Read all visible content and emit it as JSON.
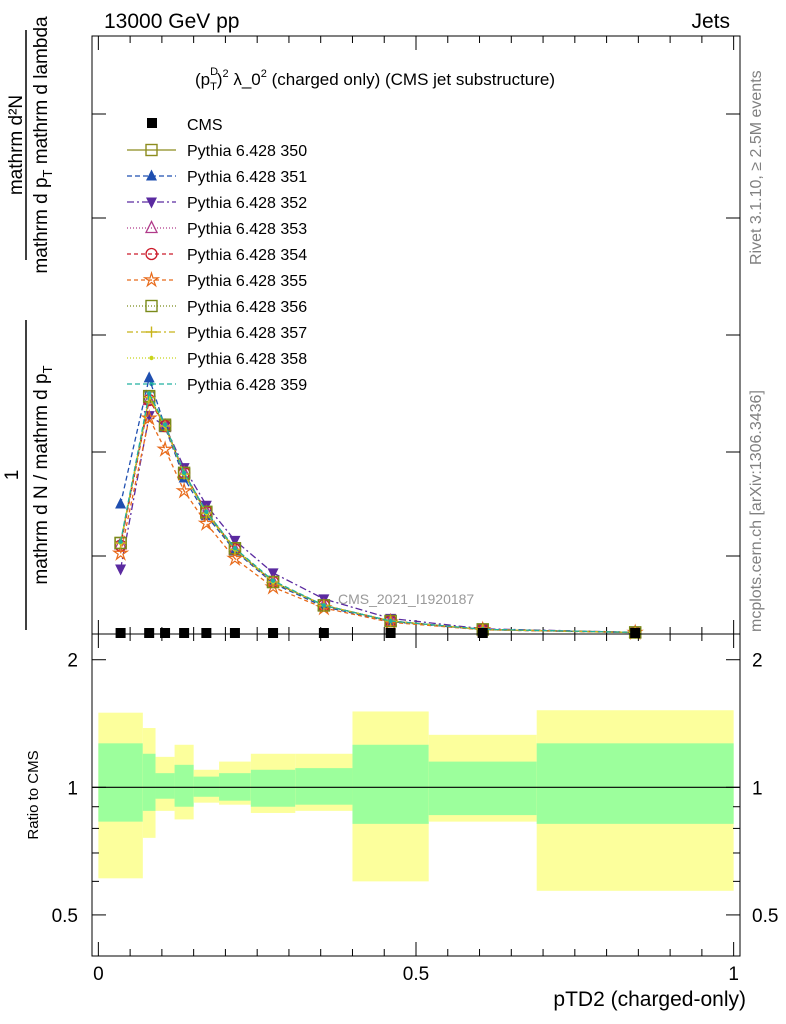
{
  "header": {
    "left": "13000 GeV pp",
    "right": "Jets"
  },
  "side_text": {
    "rivet": "Rivet 3.1.10, ≥ 2.5M events",
    "mcplots": "mcplots.cern.ch [arXiv:1306.3436]"
  },
  "chart_data": [
    {
      "type": "line",
      "title_parts": {
        "p": "(p",
        "sup_d": "D",
        "sub_t": "T",
        "close": ")",
        "sup_2a": "2",
        "lambda": " λ_0",
        "sup_2b": "2",
        "rest": " (charged only) (CMS jet substructure)"
      },
      "ylabel": {
        "numerator": "mathrm d²N",
        "denominator_a": "mathrm d p",
        "denominator_sub": "T",
        "denominator_b": " mathrm d lambda",
        "lhs_numerator": "1",
        "lhs_denominator": "mathrm d N / mathrm d p",
        "lhs_denominator_sub": "T"
      },
      "watermark": "CMS_2021_I1920187",
      "x_range": [
        -0.01,
        1.01
      ],
      "y_range": [
        0,
        4.6
      ],
      "x": [
        0.035,
        0.08,
        0.105,
        0.135,
        0.17,
        0.215,
        0.275,
        0.355,
        0.46,
        0.605,
        0.845
      ],
      "cms": [
        0.0,
        0.0,
        0.0,
        0.0,
        0.0,
        0.0,
        0.0,
        0.0,
        0.0,
        0.0,
        0.0
      ],
      "series": [
        {
          "name": "Pythia 6.428 350",
          "color": "#8c8c1e",
          "dash": "",
          "marker": "square-open",
          "values": [
            0.7,
            1.82,
            1.6,
            1.23,
            0.93,
            0.65,
            0.4,
            0.22,
            0.1,
            0.035,
            0.012
          ]
        },
        {
          "name": "Pythia 6.428 351",
          "color": "#1f4fb0",
          "dash": "5,3",
          "marker": "triangle-up",
          "values": [
            1.0,
            1.97,
            1.59,
            1.2,
            0.91,
            0.64,
            0.39,
            0.21,
            0.095,
            0.033,
            0.011
          ]
        },
        {
          "name": "Pythia 6.428 352",
          "color": "#5a2aa0",
          "dash": "7,3,2,3",
          "marker": "triangle-down",
          "values": [
            0.5,
            1.68,
            1.6,
            1.28,
            0.99,
            0.72,
            0.47,
            0.27,
            0.12,
            0.04,
            0.013
          ]
        },
        {
          "name": "Pythia 6.428 353",
          "color": "#b03a8a",
          "dash": "1,2",
          "marker": "triangle-open",
          "values": [
            0.69,
            1.8,
            1.6,
            1.24,
            0.94,
            0.65,
            0.4,
            0.22,
            0.1,
            0.035,
            0.012
          ]
        },
        {
          "name": "Pythia 6.428 354",
          "color": "#cc1a2a",
          "dash": "4,3",
          "marker": "circle-open",
          "values": [
            0.68,
            1.8,
            1.6,
            1.24,
            0.94,
            0.65,
            0.4,
            0.22,
            0.1,
            0.035,
            0.012
          ]
        },
        {
          "name": "Pythia 6.428 355",
          "color": "#e86a1a",
          "dash": "4,3",
          "marker": "star",
          "values": [
            0.62,
            1.66,
            1.42,
            1.1,
            0.85,
            0.58,
            0.36,
            0.2,
            0.09,
            0.032,
            0.011
          ]
        },
        {
          "name": "Pythia 6.428 356",
          "color": "#7a8a1a",
          "dash": "1,2",
          "marker": "square-open",
          "values": [
            0.7,
            1.83,
            1.61,
            1.24,
            0.94,
            0.66,
            0.4,
            0.22,
            0.1,
            0.035,
            0.012
          ]
        },
        {
          "name": "Pythia 6.428 357",
          "color": "#c8b41a",
          "dash": "6,3,2,3",
          "marker": "plus",
          "values": [
            0.7,
            1.82,
            1.6,
            1.23,
            0.93,
            0.65,
            0.4,
            0.22,
            0.1,
            0.035,
            0.012
          ]
        },
        {
          "name": "Pythia 6.428 358",
          "color": "#c8d41a",
          "dash": "1,2",
          "marker": "dot",
          "values": [
            0.7,
            1.82,
            1.6,
            1.23,
            0.93,
            0.65,
            0.4,
            0.22,
            0.1,
            0.035,
            0.012
          ]
        },
        {
          "name": "Pythia 6.428 359",
          "color": "#20b0a0",
          "dash": "5,3",
          "marker": "dot",
          "values": [
            0.71,
            1.85,
            1.61,
            1.24,
            0.94,
            0.66,
            0.41,
            0.22,
            0.1,
            0.036,
            0.012
          ]
        }
      ]
    },
    {
      "type": "area",
      "ylabel": "Ratio to CMS",
      "xlabel": "pTD2 (charged-only)",
      "x_range": [
        -0.01,
        1.01
      ],
      "y_range": [
        0.4,
        2.3
      ],
      "x_ticks": [
        "0",
        "0.5",
        "1"
      ],
      "y_ticks": [
        "0.5",
        "1",
        "2"
      ],
      "reference": 1.0,
      "bins": [
        {
          "lo": 0.0,
          "hi": 0.07,
          "inner": [
            0.83,
            1.27
          ],
          "outer": [
            0.61,
            1.5
          ]
        },
        {
          "lo": 0.07,
          "hi": 0.09,
          "inner": [
            0.88,
            1.2
          ],
          "outer": [
            0.76,
            1.38
          ]
        },
        {
          "lo": 0.09,
          "hi": 0.12,
          "inner": [
            0.94,
            1.08
          ],
          "outer": [
            0.88,
            1.18
          ]
        },
        {
          "lo": 0.12,
          "hi": 0.15,
          "inner": [
            0.9,
            1.13
          ],
          "outer": [
            0.84,
            1.26
          ]
        },
        {
          "lo": 0.15,
          "hi": 0.19,
          "inner": [
            0.95,
            1.06
          ],
          "outer": [
            0.92,
            1.1
          ]
        },
        {
          "lo": 0.19,
          "hi": 0.24,
          "inner": [
            0.93,
            1.08
          ],
          "outer": [
            0.91,
            1.15
          ]
        },
        {
          "lo": 0.24,
          "hi": 0.31,
          "inner": [
            0.9,
            1.1
          ],
          "outer": [
            0.87,
            1.2
          ]
        },
        {
          "lo": 0.31,
          "hi": 0.4,
          "inner": [
            0.91,
            1.11
          ],
          "outer": [
            0.88,
            1.2
          ]
        },
        {
          "lo": 0.4,
          "hi": 0.52,
          "inner": [
            0.82,
            1.26
          ],
          "outer": [
            0.6,
            1.51
          ]
        },
        {
          "lo": 0.52,
          "hi": 0.69,
          "inner": [
            0.86,
            1.15
          ],
          "outer": [
            0.83,
            1.33
          ]
        },
        {
          "lo": 0.69,
          "hi": 1.0,
          "inner": [
            0.82,
            1.27
          ],
          "outer": [
            0.57,
            1.52
          ]
        }
      ]
    }
  ],
  "colors": {
    "band_inner": "#9cff9c",
    "band_outer": "#fcff9c",
    "cms_marker": "#000000",
    "side_text": "#808080"
  }
}
